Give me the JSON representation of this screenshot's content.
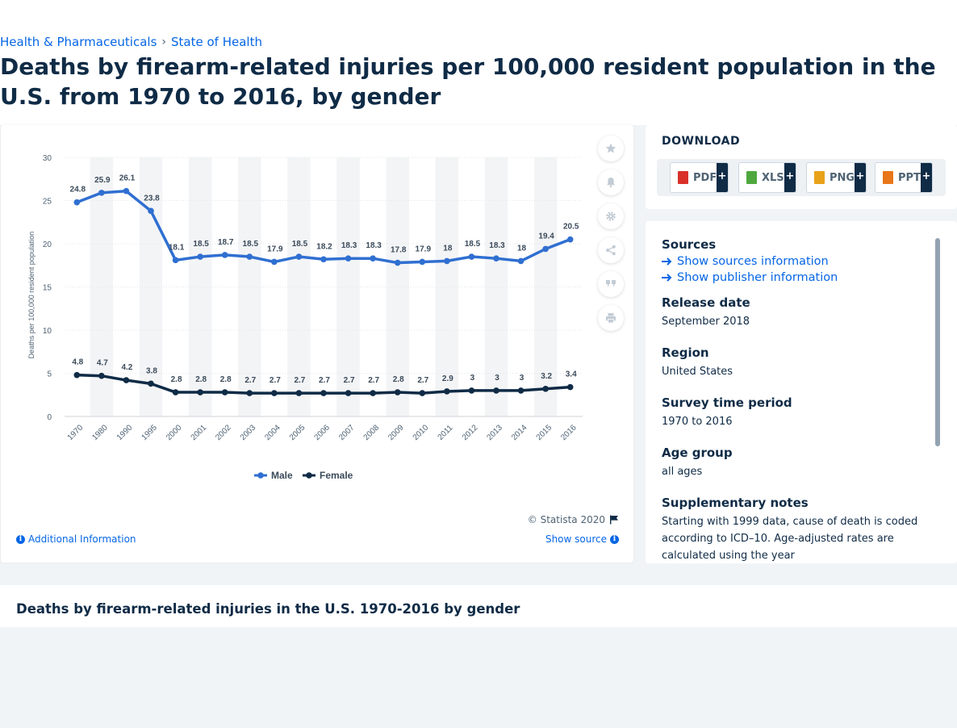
{
  "breadcrumb": {
    "items": [
      "Health & Pharmaceuticals",
      "State of Health"
    ],
    "separator": "›"
  },
  "page_title": "Deaths by firearm-related injuries per 100,000 resident population in the U.S. from 1970 to 2016, by gender",
  "chart_data": {
    "type": "line",
    "x": [
      "1970",
      "1980",
      "1990",
      "1995",
      "2000",
      "2001",
      "2002",
      "2003",
      "2004",
      "2005",
      "2006",
      "2007",
      "2008",
      "2009",
      "2010",
      "2011",
      "2012",
      "2013",
      "2014",
      "2015",
      "2016"
    ],
    "series": [
      {
        "name": "Male",
        "color": "#2f6fd1",
        "values": [
          24.8,
          25.9,
          26.1,
          23.8,
          18.1,
          18.5,
          18.7,
          18.5,
          17.9,
          18.5,
          18.2,
          18.3,
          18.3,
          17.8,
          17.9,
          18,
          18.5,
          18.3,
          18,
          19.4,
          20.5
        ]
      },
      {
        "name": "Female",
        "color": "#0f2b46",
        "values": [
          4.8,
          4.7,
          4.2,
          3.8,
          2.8,
          2.8,
          2.8,
          2.7,
          2.7,
          2.7,
          2.7,
          2.7,
          2.7,
          2.8,
          2.7,
          2.9,
          3,
          3,
          3,
          3.2,
          3.4
        ]
      }
    ],
    "ylabel": "Deaths per 100,000 resident population",
    "ylim": [
      0,
      30
    ],
    "yticks": [
      0,
      5,
      10,
      15,
      20,
      25,
      30
    ],
    "grid": true,
    "legend": "bottom-center",
    "alternating_column_bands": true
  },
  "chart_footer": {
    "copyright": "© Statista 2020",
    "additional_info": "Additional Information",
    "show_source": "Show source"
  },
  "side_tools": [
    "star-icon",
    "bell-icon",
    "gear-icon",
    "share-icon",
    "quote-icon",
    "print-icon"
  ],
  "download": {
    "title": "DOWNLOAD",
    "buttons": [
      {
        "label": "PDF",
        "icon": "pdf-file-icon",
        "color": "#d9302a"
      },
      {
        "label": "XLS",
        "icon": "xls-file-icon",
        "color": "#4fa83d"
      },
      {
        "label": "PNG",
        "icon": "png-file-icon",
        "color": "#e8a21a"
      },
      {
        "label": "PPT",
        "icon": "ppt-file-icon",
        "color": "#e8761a"
      }
    ],
    "plus": "+"
  },
  "details": {
    "sources_heading": "Sources",
    "show_sources": "Show sources information",
    "show_publisher": "Show publisher information",
    "release_date_heading": "Release date",
    "release_date": "September 2018",
    "region_heading": "Region",
    "region": "United States",
    "survey_period_heading": "Survey time period",
    "survey_period": "1970 to 2016",
    "age_group_heading": "Age group",
    "age_group": "all ages",
    "supplementary_heading": "Supplementary notes",
    "supplementary_notes": "Starting with 1999 data, cause of death is coded according to ICD–10. Age-adjusted rates are calculated using the year"
  },
  "bottom_title": "Deaths by firearm-related injuries in the U.S. 1970-2016 by gender",
  "colors": {
    "accent": "#0666e5",
    "navy": "#0f2b46",
    "male": "#2f6fd1"
  }
}
